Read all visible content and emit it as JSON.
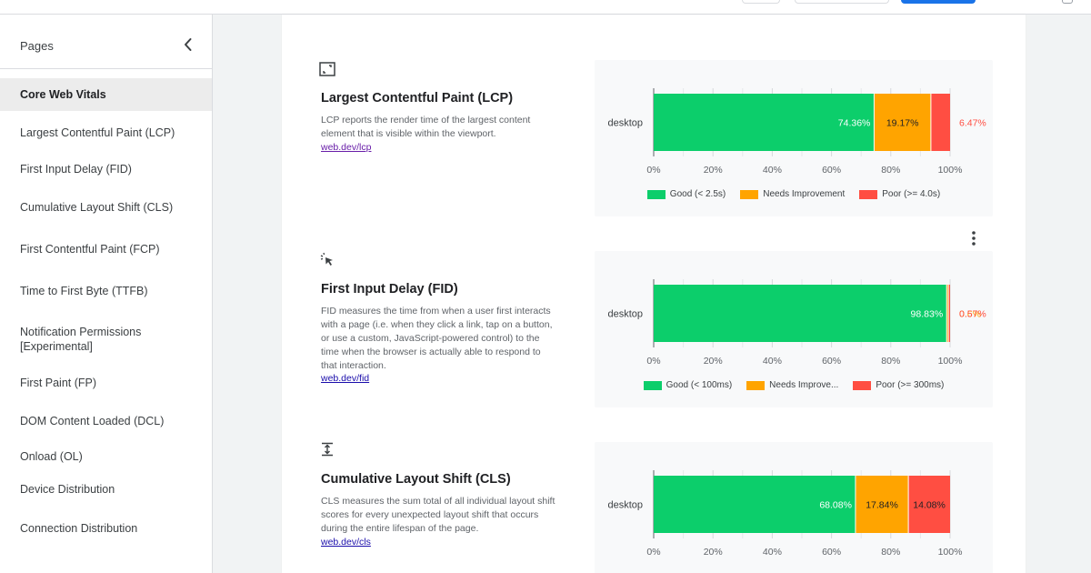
{
  "colors": {
    "good": "#0cce6b",
    "needs": "#ffa400",
    "poor": "#ff4e42"
  },
  "sidebar": {
    "title": "Pages",
    "items": [
      {
        "label": "Core Web Vitals",
        "active": true
      },
      {
        "label": "Largest Contentful Paint (LCP)"
      },
      {
        "label": "First Input Delay (FID)"
      },
      {
        "label": "Cumulative Layout Shift (CLS)"
      },
      {
        "label": "First Contentful Paint (FCP)"
      },
      {
        "label": "Time to First Byte (TTFB)"
      },
      {
        "label": "Notification Permissions [Experimental]"
      },
      {
        "label": "First Paint (FP)"
      },
      {
        "label": "DOM Content Loaded (DCL)"
      },
      {
        "label": "Onload (OL)"
      },
      {
        "label": "Device Distribution"
      },
      {
        "label": "Connection Distribution"
      }
    ]
  },
  "metrics": [
    {
      "icon": "resize-icon",
      "title": "Largest Contentful Paint (LCP)",
      "description": "LCP reports the render time of the largest content element that is visible within the viewport.",
      "link": "web.dev/lcp"
    },
    {
      "icon": "cursor-click-icon",
      "title": "First Input Delay (FID)",
      "description": "FID measures the time from when a user first interacts with a page (i.e. when they click a link, tap on a button, or use a custom, JavaScript-powered control) to the time when the browser is actually able to respond to that interaction.",
      "link": "web.dev/fid"
    },
    {
      "icon": "vertical-expand-icon",
      "title": "Cumulative Layout Shift (CLS)",
      "description": "CLS measures the sum total of all individual layout shift scores for every unexpected layout shift that occurs during the entire lifespan of the page.",
      "link": "web.dev/cls"
    }
  ],
  "chart_data": [
    {
      "type": "bar",
      "orientation": "horizontal",
      "stacked": true,
      "categories": [
        "desktop"
      ],
      "xlim": [
        0,
        100
      ],
      "xticks": [
        "0%",
        "20%",
        "40%",
        "60%",
        "80%",
        "100%"
      ],
      "series": [
        {
          "name": "Good (< 2.5s)",
          "values": [
            74.36
          ],
          "label": "74.36%"
        },
        {
          "name": "Needs Improvement",
          "values": [
            19.17
          ],
          "label": "19.17%"
        },
        {
          "name": "Poor (>= 4.0s)",
          "values": [
            6.47
          ],
          "label": "6.47%"
        }
      ],
      "legend": "bottom"
    },
    {
      "type": "bar",
      "orientation": "horizontal",
      "stacked": true,
      "categories": [
        "desktop"
      ],
      "xlim": [
        0,
        100
      ],
      "xticks": [
        "0%",
        "20%",
        "40%",
        "60%",
        "80%",
        "100%"
      ],
      "series": [
        {
          "name": "Good (< 100ms)",
          "values": [
            98.83
          ],
          "label": "98.83%"
        },
        {
          "name": "Needs Improve...",
          "values": [
            0.6
          ],
          "label": "0.6%"
        },
        {
          "name": "Poor (>= 300ms)",
          "values": [
            0.57
          ],
          "label": "0.57%"
        }
      ],
      "legend": "bottom"
    },
    {
      "type": "bar",
      "orientation": "horizontal",
      "stacked": true,
      "categories": [
        "desktop"
      ],
      "xlim": [
        0,
        100
      ],
      "xticks": [
        "0%",
        "20%",
        "40%",
        "60%",
        "80%",
        "100%"
      ],
      "series": [
        {
          "name": "",
          "values": [
            68.08
          ],
          "label": "68.08%"
        },
        {
          "name": "",
          "values": [
            17.84
          ],
          "label": "17.84%"
        },
        {
          "name": "",
          "values": [
            14.08
          ],
          "label": "14.08%"
        }
      ],
      "legend": "bottom"
    }
  ]
}
